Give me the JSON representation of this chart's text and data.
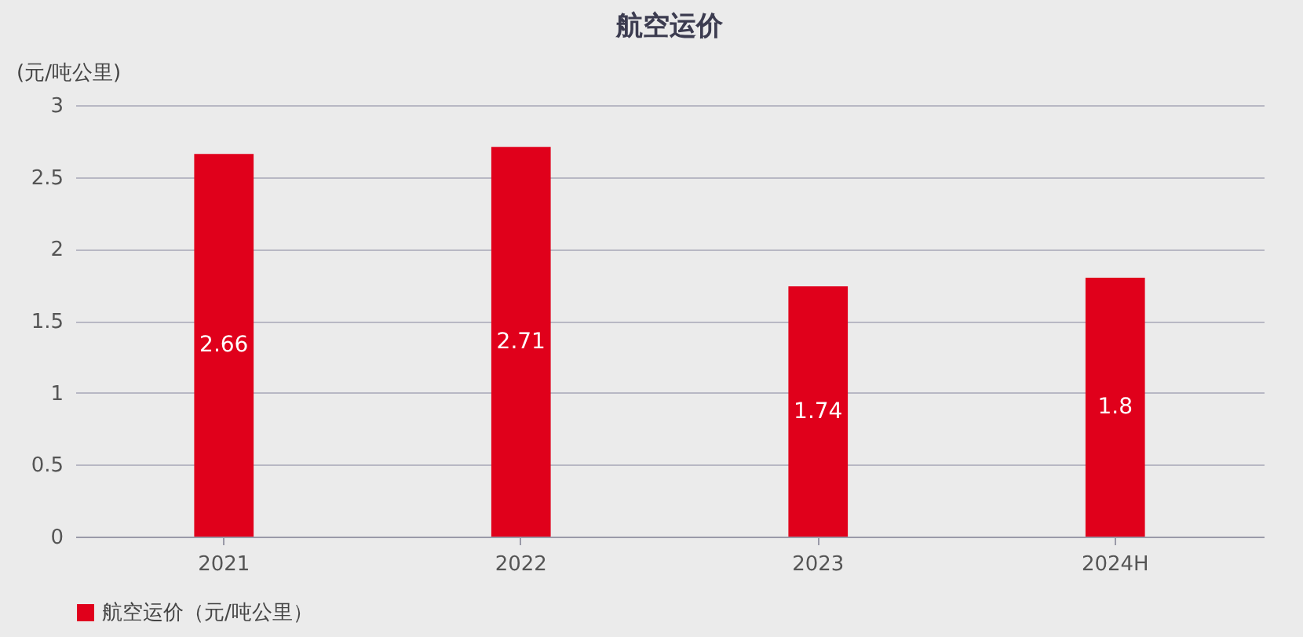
{
  "chart_data": {
    "type": "bar",
    "title": "航空运价",
    "ylabel": "(元/吨公里)",
    "categories": [
      "2021",
      "2022",
      "2023",
      "2024H"
    ],
    "series": [
      {
        "name": "航空运价（元/吨公里）",
        "color": "#e0001b",
        "values": [
          2.66,
          2.71,
          1.74,
          1.8
        ]
      }
    ],
    "ylim": [
      0,
      3
    ],
    "yticks": [
      0,
      0.5,
      1,
      1.5,
      2,
      2.5,
      3
    ],
    "grid": "y",
    "legend": "bottom",
    "data_labels": true
  }
}
